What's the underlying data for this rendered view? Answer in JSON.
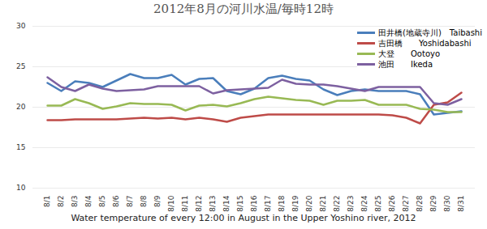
{
  "chart_data": {
    "type": "line",
    "title": "2012年8月の河川水温/毎時12時",
    "x_label": "Water temperature of every 12:00 in August in the Upper Yoshino river, 2012",
    "categories": [
      "8/1",
      "8/2",
      "8/3",
      "8/4",
      "8/5",
      "8/6",
      "8/7",
      "8/8",
      "8/9",
      "8/10",
      "8/11",
      "8/12",
      "8/13",
      "8/14",
      "8/15",
      "8/16",
      "8/17",
      "8/18",
      "8/19",
      "8/20",
      "8/21",
      "8/22",
      "8/23",
      "8/24",
      "8/25",
      "8/26",
      "8/27",
      "8/28",
      "8/29",
      "8/30",
      "8/31"
    ],
    "series": [
      {
        "name": "田井橋(地蔵寺川)　Taibashi",
        "color": "#4a7ebb",
        "values": [
          23,
          22,
          23.2,
          23,
          22.5,
          23.3,
          24.1,
          23.6,
          23.6,
          24,
          22.8,
          23.5,
          23.6,
          22,
          21.6,
          22.3,
          23.6,
          23.9,
          23.5,
          23.3,
          22.2,
          21.5,
          22,
          22.2,
          22,
          22,
          22,
          21.6,
          19.1,
          19.3,
          19.5
        ]
      },
      {
        "name": "吉田橋　　Yoshidabashi",
        "color": "#be4b48",
        "values": [
          18.4,
          18.4,
          18.5,
          18.5,
          18.5,
          18.5,
          18.6,
          18.7,
          18.6,
          18.7,
          18.5,
          18.7,
          18.5,
          18.2,
          18.7,
          18.9,
          19.1,
          19.1,
          19.1,
          19.1,
          19.1,
          19.1,
          19.1,
          19.1,
          19.1,
          19,
          18.7,
          18,
          20.3,
          20.6,
          21.8
        ]
      },
      {
        "name": "大登　　Ootoyo",
        "color": "#98b954",
        "values": [
          20.2,
          20.2,
          21,
          20.5,
          19.8,
          20.1,
          20.5,
          20.4,
          20.4,
          20.3,
          19.6,
          20.2,
          20.3,
          20.1,
          20.5,
          21,
          21.3,
          21.1,
          20.9,
          20.8,
          20.3,
          20.8,
          20.8,
          20.9,
          20.3,
          20.3,
          20.3,
          19.8,
          19.7,
          19.4,
          19.4
        ]
      },
      {
        "name": "池田　　Ikeda",
        "color": "#7d60a0",
        "values": [
          23.7,
          22.5,
          22,
          22.8,
          22.3,
          22,
          22.1,
          22.2,
          22.6,
          22.6,
          22.6,
          22.6,
          21.7,
          22.1,
          22.2,
          22.3,
          22.4,
          23.4,
          22.9,
          22.8,
          22.8,
          22.6,
          22.3,
          22,
          22.5,
          22.5,
          22.5,
          22.5,
          20.5,
          20.3,
          21
        ]
      }
    ],
    "ylim": [
      10,
      30
    ],
    "yticks": [
      10,
      15,
      20,
      25,
      30
    ],
    "grid": true,
    "legend": "top-right"
  }
}
